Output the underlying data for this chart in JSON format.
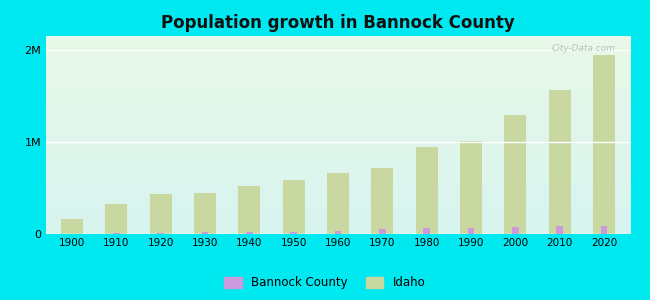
{
  "title": "Population growth in Bannock County",
  "years": [
    1900,
    1910,
    1920,
    1930,
    1940,
    1950,
    1960,
    1970,
    1980,
    1990,
    2000,
    2010,
    2020
  ],
  "bannock_county": [
    4083,
    11039,
    16249,
    19196,
    20000,
    27000,
    33000,
    52000,
    65421,
    66026,
    75565,
    82522,
    92000
  ],
  "idaho": [
    161772,
    325594,
    431866,
    445032,
    524873,
    588637,
    667191,
    713008,
    943935,
    1006749,
    1293953,
    1567582,
    1939000
  ],
  "ylim": [
    0,
    2150000
  ],
  "yticks": [
    0,
    1000000,
    2000000
  ],
  "ytick_labels": [
    "0",
    "1M",
    "2M"
  ],
  "bar_color_idaho": "#c8d8a0",
  "bar_color_bannock": "#cc99dd",
  "outer_bg": "#00e8f0",
  "bg_top": "#e8f8e8",
  "bg_bottom": "#d8f4f0",
  "watermark": "City-Data.com",
  "legend_bannock": "Bannock County",
  "legend_idaho": "Idaho",
  "idaho_bar_width": 0.5,
  "bannock_bar_width": 0.15
}
